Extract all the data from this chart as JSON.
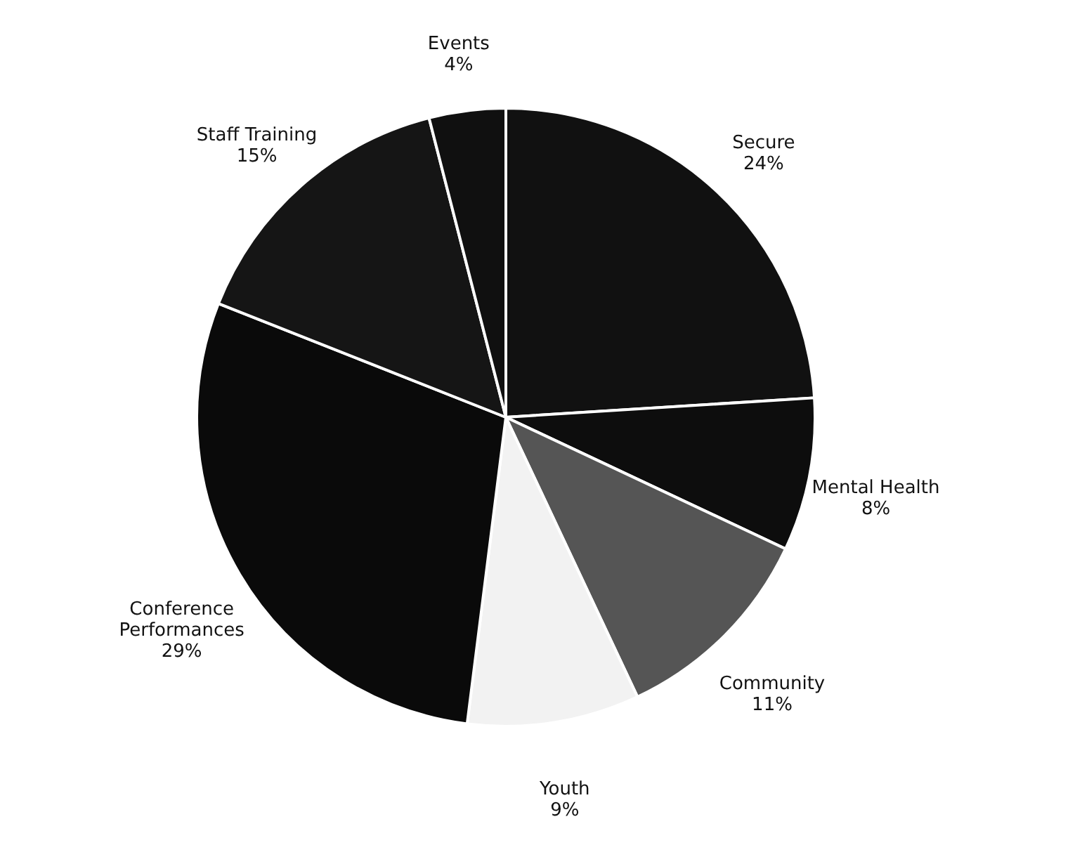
{
  "chart_data": {
    "type": "pie",
    "categories": [
      "Secure",
      "Mental Health",
      "Community",
      "Youth",
      "Conference Performances",
      "Staff Training",
      "Events"
    ],
    "values": [
      24,
      8,
      11,
      9,
      29,
      15,
      4
    ],
    "value_labels": [
      "24%",
      "8%",
      "11%",
      "9%",
      "29%",
      "15%",
      "4%"
    ],
    "colors": [
      "#111111",
      "#0d0d0d",
      "#555555",
      "#f2f2f2",
      "#0a0a0a",
      "#151515",
      "#101010"
    ],
    "legend": false
  }
}
